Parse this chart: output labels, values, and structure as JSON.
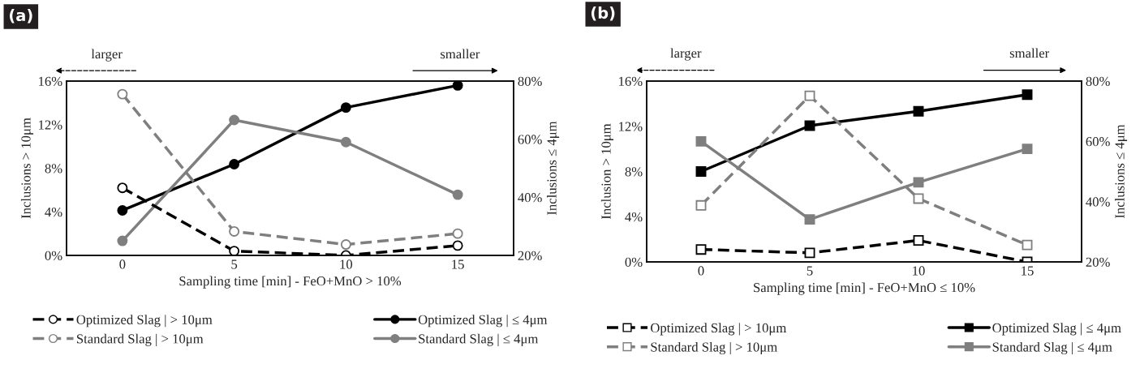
{
  "chart_data": [
    {
      "type": "line",
      "title": "(a)",
      "xlabel": "Sampling time [min] - FeO+MnO > 10%",
      "ylabel": "Inclusions > 10μm",
      "y2label": "Inclusions ≤ 4μm",
      "x": [
        0,
        5,
        10,
        15
      ],
      "xlim": [
        -2.5,
        17.5
      ],
      "xticks": [
        0,
        5,
        10,
        15
      ],
      "ylim": [
        0,
        16
      ],
      "yticks": [
        {
          "value": 0,
          "label": "0%"
        },
        {
          "value": 4,
          "label": "4%"
        },
        {
          "value": 8,
          "label": "8%"
        },
        {
          "value": 12,
          "label": "12%"
        },
        {
          "value": 16,
          "label": "16%"
        }
      ],
      "y2lim": [
        20,
        80
      ],
      "y2ticks": [
        {
          "value": 20,
          "label": "20%"
        },
        {
          "value": 40,
          "label": "40%"
        },
        {
          "value": 60,
          "label": "60%"
        },
        {
          "value": 80,
          "label": "80%"
        }
      ],
      "marker": "circle",
      "legend": "bottom",
      "grid": false,
      "annotations": [
        "larger",
        "smaller"
      ],
      "series": [
        {
          "name": "Optimized Slag | > 10μm",
          "color": "#000000",
          "line_style": "dashed",
          "values": [
            6.2,
            0.4,
            0,
            0.9
          ]
        },
        {
          "name": "Standard Slag | > 10μm",
          "color": "#7f7f7f",
          "line_style": "dashed",
          "values": [
            14.8,
            2.2,
            1.0,
            2.0
          ]
        },
        {
          "name": "Optimized Slag | ≤ 4μm",
          "color": "#000000",
          "line_style": "solid",
          "axis": "y2",
          "values": [
            35.5,
            51.4,
            70.9,
            78.5
          ]
        },
        {
          "name": "Standard Slag | ≤ 4μm",
          "color": "#7f7f7f",
          "line_style": "solid",
          "axis": "y2",
          "values": [
            25,
            66.6,
            59,
            40.9
          ]
        }
      ]
    },
    {
      "type": "line",
      "title": "(b)",
      "xlabel": "Sampling time [min] - FeO+MnO ≤ 10%",
      "ylabel": "Inclusion > 10μm",
      "y2label": "Inclusions ≤ 4μm",
      "x": [
        0,
        5,
        10,
        15
      ],
      "xlim": [
        -2.5,
        17.5
      ],
      "xticks": [
        0,
        5,
        10,
        15
      ],
      "ylim": [
        0,
        16
      ],
      "yticks": [
        {
          "value": 0,
          "label": "0%"
        },
        {
          "value": 4,
          "label": "4%"
        },
        {
          "value": 8,
          "label": "8%"
        },
        {
          "value": 12,
          "label": "12%"
        },
        {
          "value": 16,
          "label": "16%"
        }
      ],
      "y2lim": [
        20,
        80
      ],
      "y2ticks": [
        {
          "value": 20,
          "label": "20%"
        },
        {
          "value": 40,
          "label": "40%"
        },
        {
          "value": 60,
          "label": "60%"
        },
        {
          "value": 80,
          "label": "80%"
        }
      ],
      "marker": "square",
      "legend": "bottom",
      "grid": false,
      "annotations": [
        "larger",
        "smaller"
      ],
      "series": [
        {
          "name": "Optimized Slag | > 10μm",
          "color": "#000000",
          "line_style": "dashed",
          "values": [
            1.1,
            0.8,
            1.9,
            0
          ]
        },
        {
          "name": "Standard Slag | > 10μm",
          "color": "#7f7f7f",
          "line_style": "dashed",
          "values": [
            5.0,
            14.7,
            5.6,
            1.5
          ]
        },
        {
          "name": "Optimized Slag | ≤ 4μm",
          "color": "#000000",
          "line_style": "solid",
          "axis": "y2",
          "values": [
            50,
            65.2,
            70,
            75.5
          ]
        },
        {
          "name": "Standard Slag | ≤ 4μm",
          "color": "#7f7f7f",
          "line_style": "solid",
          "axis": "y2",
          "values": [
            60,
            34.1,
            46.4,
            57.5
          ]
        }
      ]
    }
  ]
}
